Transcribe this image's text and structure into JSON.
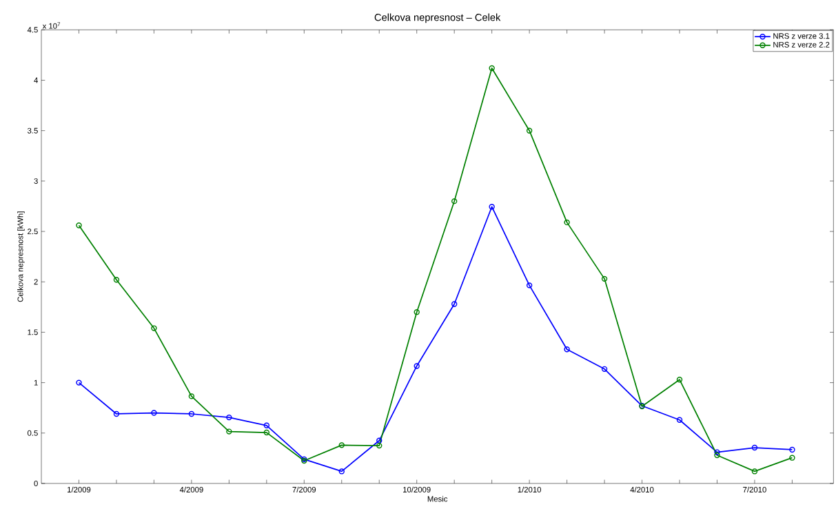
{
  "chart_data": {
    "type": "line",
    "title": "Celkova nepresnost – Celek",
    "xlabel": "Mesic",
    "ylabel": "Celkova nepresnost [kWh]",
    "annotations": [
      "x 10$^{7}$"
    ],
    "categories": [
      "1/2009",
      null,
      null,
      "4/2009",
      null,
      null,
      "7/2009",
      null,
      null,
      "10/2009",
      null,
      null,
      "1/2010",
      null,
      null,
      "4/2010",
      null,
      null,
      "7/2010",
      null
    ],
    "series": [
      {
        "name": "NRS z verze 3.1",
        "color": "#0000ff",
        "values": [
          1.0,
          0.69,
          0.7,
          0.69,
          0.655,
          0.575,
          0.24,
          0.12,
          0.425,
          1.165,
          1.78,
          2.745,
          1.965,
          1.33,
          1.135,
          0.77,
          0.63,
          0.31,
          0.355,
          0.335
        ]
      },
      {
        "name": "NRS z verze 2.2",
        "color": "#008000",
        "values": [
          2.56,
          2.02,
          1.54,
          0.865,
          0.515,
          0.505,
          0.225,
          0.38,
          0.375,
          1.7,
          2.8,
          4.12,
          3.5,
          2.59,
          2.03,
          0.765,
          1.03,
          0.28,
          0.12,
          0.255
        ]
      }
    ],
    "ylim": [
      0,
      4.5
    ],
    "yticks": [
      0,
      0.5,
      1,
      1.5,
      2,
      2.5,
      3,
      3.5,
      4,
      4.5
    ],
    "legend": "top right",
    "marker": "circle",
    "line_style": "solid",
    "grid": false
  }
}
